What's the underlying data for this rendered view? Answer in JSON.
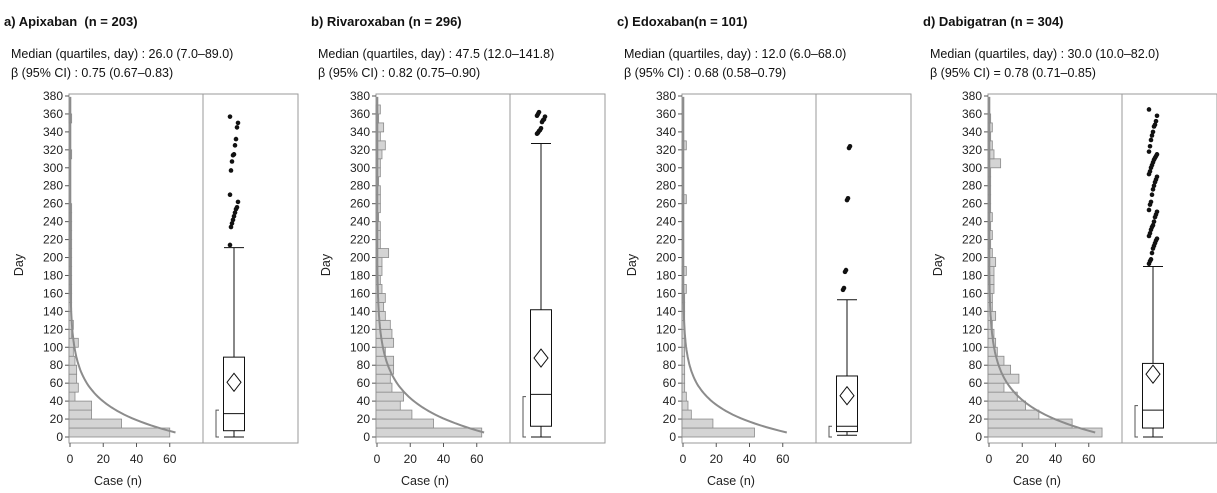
{
  "chart_data": [
    {
      "type": "bar",
      "title": "a) Apixaban  (n = 203)",
      "stat_median": "Median (quartiles, day) : 26.0 (7.0–89.0)",
      "stat_beta": "β (95% CI) : 0.75 (0.67–0.83)",
      "xlabel": "Case (n)",
      "ylabel": "Day",
      "xlim": [
        0,
        80
      ],
      "ylim": [
        0,
        380
      ],
      "xticks": [
        0,
        20,
        40,
        60
      ],
      "yticks": [
        0,
        20,
        40,
        60,
        80,
        100,
        120,
        140,
        160,
        180,
        200,
        220,
        240,
        260,
        280,
        300,
        320,
        340,
        360,
        380
      ],
      "bin_width": 10,
      "histogram": [
        60,
        31,
        13,
        13,
        3,
        5,
        4,
        4,
        3,
        2,
        5,
        1,
        2,
        1,
        1,
        1,
        1,
        1,
        1,
        1,
        1,
        1,
        1,
        1,
        1,
        1,
        0,
        0,
        0,
        0,
        0,
        1,
        0,
        0,
        0,
        1,
        0
      ],
      "fit_curve": {
        "type": "exponential",
        "beta": 0.75,
        "peak_cases": 75
      },
      "boxplot": {
        "min": 0,
        "q1": 7,
        "median": 26,
        "mean": 61,
        "q3": 89,
        "whisker_high": 211,
        "shortest_half": [
          0,
          30
        ],
        "outliers": [
          214,
          234,
          238,
          242,
          246,
          250,
          254,
          256,
          262,
          270,
          297,
          307,
          314,
          315,
          325,
          332,
          345,
          350,
          357
        ]
      }
    },
    {
      "type": "bar",
      "title": "b) Rivaroxaban (n = 296)",
      "stat_median": "Median (quartiles, day) : 47.5 (12.0–141.8)",
      "stat_beta": "β (95% CI) : 0.82 (0.75–0.90)",
      "xlabel": "Case (n)",
      "ylabel": "Day",
      "xlim": [
        0,
        80
      ],
      "ylim": [
        0,
        380
      ],
      "xticks": [
        0,
        20,
        40,
        60
      ],
      "yticks": [
        0,
        20,
        40,
        60,
        80,
        100,
        120,
        140,
        160,
        180,
        200,
        220,
        240,
        260,
        280,
        300,
        320,
        340,
        360,
        380
      ],
      "bin_width": 10,
      "histogram": [
        63,
        34,
        21,
        14,
        16,
        9,
        8,
        10,
        10,
        5,
        10,
        9,
        8,
        5,
        4,
        5,
        3,
        2,
        3,
        3,
        7,
        2,
        2,
        2,
        1,
        2,
        2,
        2,
        1,
        2,
        2,
        3,
        5,
        2,
        4,
        1,
        2
      ],
      "fit_curve": {
        "type": "exponential",
        "beta": 0.82,
        "peak_cases": 75
      },
      "boxplot": {
        "min": 0,
        "q1": 12,
        "median": 47.5,
        "mean": 88,
        "q3": 141.8,
        "whisker_high": 327,
        "shortest_half": [
          0,
          45
        ],
        "outliers": [
          338,
          339,
          341,
          342,
          344,
          351,
          353,
          354,
          357,
          358,
          360,
          362
        ]
      }
    },
    {
      "type": "bar",
      "title": "c) Edoxaban(n = 101)",
      "stat_median": "Median (quartiles, day) : 12.0 (6.0–68.0)",
      "stat_beta": "β (95% CI) : 0.68 (0.58–0.79)",
      "xlabel": "Case (n)",
      "ylabel": "Day",
      "xlim": [
        0,
        80
      ],
      "ylim": [
        0,
        380
      ],
      "xticks": [
        0,
        20,
        40,
        60
      ],
      "yticks": [
        0,
        20,
        40,
        60,
        80,
        100,
        120,
        140,
        160,
        180,
        200,
        220,
        240,
        260,
        280,
        300,
        320,
        340,
        360,
        380
      ],
      "bin_width": 10,
      "histogram": [
        43,
        18,
        5,
        3,
        2,
        1,
        1,
        1,
        1,
        1,
        1,
        1,
        1,
        1,
        1,
        1,
        2,
        0,
        2,
        0,
        0,
        0,
        0,
        0,
        0,
        0,
        2,
        0,
        0,
        0,
        0,
        0,
        2,
        0,
        0,
        0,
        0
      ],
      "fit_curve": {
        "type": "exponential",
        "beta": 0.68,
        "peak_cases": 75
      },
      "boxplot": {
        "min": 2,
        "q1": 6,
        "median": 12,
        "mean": 46,
        "q3": 68,
        "whisker_high": 153,
        "shortest_half": [
          0,
          12
        ],
        "outliers": [
          164,
          166,
          184,
          186,
          264,
          266,
          322,
          324
        ]
      }
    },
    {
      "type": "bar",
      "title": "d) Dabigatran (n = 304)",
      "stat_median": "Median (quartiles, day) : 30.0 (10.0–82.0)",
      "stat_beta": "β (95% CI) = 0.78 (0.71–0.85)",
      "xlabel": "Case (n)",
      "ylabel": "Day",
      "xlim": [
        0,
        80
      ],
      "ylim": [
        0,
        380
      ],
      "xticks": [
        0,
        20,
        40,
        60
      ],
      "yticks": [
        0,
        20,
        40,
        60,
        80,
        100,
        120,
        140,
        160,
        180,
        200,
        220,
        240,
        260,
        280,
        300,
        320,
        340,
        360,
        380
      ],
      "bin_width": 10,
      "histogram": [
        68,
        50,
        30,
        22,
        17,
        9,
        18,
        13,
        9,
        5,
        4,
        3,
        2,
        4,
        2,
        2,
        3,
        3,
        3,
        4,
        2,
        1,
        2,
        1,
        2,
        1,
        1,
        1,
        1,
        1,
        7,
        3,
        2,
        1,
        2,
        1,
        0
      ],
      "fit_curve": {
        "type": "exponential",
        "beta": 0.78,
        "peak_cases": 75
      },
      "boxplot": {
        "min": 0,
        "q1": 10,
        "median": 30,
        "mean": 70,
        "q3": 82,
        "whisker_high": 190,
        "shortest_half": [
          0,
          35
        ],
        "outliers": [
          193,
          196,
          198,
          205,
          210,
          213,
          216,
          219,
          221,
          224,
          227,
          231,
          234,
          236,
          240,
          245,
          248,
          251,
          253,
          259,
          262,
          270,
          276,
          280,
          284,
          287,
          290,
          293,
          296,
          300,
          303,
          306,
          309,
          311,
          313,
          315,
          318,
          324,
          331,
          336,
          340,
          346,
          348,
          352,
          358,
          365
        ]
      }
    }
  ]
}
